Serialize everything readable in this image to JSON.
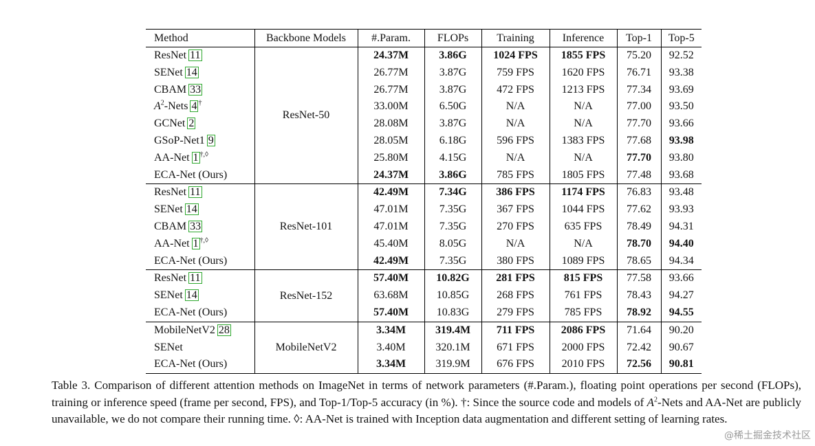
{
  "table": {
    "headers": [
      "Method",
      "Backbone Models",
      "#.Param.",
      "FLOPs",
      "Training",
      "Inference",
      "Top-1",
      "Top-5"
    ],
    "groups": [
      {
        "backbone": "ResNet-50",
        "rows": [
          {
            "method": "ResNet",
            "ref": "11",
            "marks": "",
            "param": "24.37M",
            "flops": "3.86G",
            "train": "1024 FPS",
            "infer": "1855 FPS",
            "top1": "75.20",
            "top5": "92.52"
          },
          {
            "method": "SENet",
            "ref": "14",
            "marks": "",
            "param": "26.77M",
            "flops": "3.87G",
            "train": "759 FPS",
            "infer": "1620 FPS",
            "top1": "76.71",
            "top5": "93.38"
          },
          {
            "method": "CBAM",
            "ref": "33",
            "marks": "",
            "param": "26.77M",
            "flops": "3.87G",
            "train": "472 FPS",
            "infer": "1213 FPS",
            "top1": "77.34",
            "top5": "93.69"
          },
          {
            "method": "-Nets",
            "ref": "4",
            "marks": "†",
            "param": "33.00M",
            "flops": "6.50G",
            "train": "N/A",
            "infer": "N/A",
            "top1": "77.00",
            "top5": "93.50"
          },
          {
            "method": "GCNet",
            "ref": "2",
            "marks": "",
            "param": "28.08M",
            "flops": "3.87G",
            "train": "N/A",
            "infer": "N/A",
            "top1": "77.70",
            "top5": "93.66"
          },
          {
            "method": "GSoP-Net1",
            "ref": "9",
            "marks": "",
            "param": "28.05M",
            "flops": "6.18G",
            "train": "596 FPS",
            "infer": "1383 FPS",
            "top1": "77.68",
            "top5": "93.98"
          },
          {
            "method": "AA-Net",
            "ref": "1",
            "marks": "†,◊",
            "param": "25.80M",
            "flops": "4.15G",
            "train": "N/A",
            "infer": "N/A",
            "top1": "77.70",
            "top5": "93.80"
          },
          {
            "method": "ECA-Net (Ours)",
            "ref": "",
            "marks": "",
            "param": "24.37M",
            "flops": "3.86G",
            "train": "785 FPS",
            "infer": "1805 FPS",
            "top1": "77.48",
            "top5": "93.68"
          }
        ]
      },
      {
        "backbone": "ResNet-101",
        "rows": [
          {
            "method": "ResNet",
            "ref": "11",
            "marks": "",
            "param": "42.49M",
            "flops": "7.34G",
            "train": "386 FPS",
            "infer": "1174 FPS",
            "top1": "76.83",
            "top5": "93.48"
          },
          {
            "method": "SENet",
            "ref": "14",
            "marks": "",
            "param": "47.01M",
            "flops": "7.35G",
            "train": "367 FPS",
            "infer": "1044 FPS",
            "top1": "77.62",
            "top5": "93.93"
          },
          {
            "method": "CBAM",
            "ref": "33",
            "marks": "",
            "param": "47.01M",
            "flops": "7.35G",
            "train": "270 FPS",
            "infer": "635 FPS",
            "top1": "78.49",
            "top5": "94.31"
          },
          {
            "method": "AA-Net",
            "ref": "1",
            "marks": "†,◊",
            "param": "45.40M",
            "flops": "8.05G",
            "train": "N/A",
            "infer": "N/A",
            "top1": "78.70",
            "top5": "94.40"
          },
          {
            "method": "ECA-Net (Ours)",
            "ref": "",
            "marks": "",
            "param": "42.49M",
            "flops": "7.35G",
            "train": "380 FPS",
            "infer": "1089 FPS",
            "top1": "78.65",
            "top5": "94.34"
          }
        ]
      },
      {
        "backbone": "ResNet-152",
        "rows": [
          {
            "method": "ResNet",
            "ref": "11",
            "marks": "",
            "param": "57.40M",
            "flops": "10.82G",
            "train": "281 FPS",
            "infer": "815 FPS",
            "top1": "77.58",
            "top5": "93.66"
          },
          {
            "method": "SENet",
            "ref": "14",
            "marks": "",
            "param": "63.68M",
            "flops": "10.85G",
            "train": "268 FPS",
            "infer": "761 FPS",
            "top1": "78.43",
            "top5": "94.27"
          },
          {
            "method": "ECA-Net (Ours)",
            "ref": "",
            "marks": "",
            "param": "57.40M",
            "flops": "10.83G",
            "train": "279 FPS",
            "infer": "785 FPS",
            "top1": "78.92",
            "top5": "94.55"
          }
        ]
      },
      {
        "backbone": "MobileNetV2",
        "rows": [
          {
            "method": "MobileNetV2",
            "ref": "28",
            "marks": "",
            "param": "3.34M",
            "flops": "319.4M",
            "train": "711 FPS",
            "infer": "2086 FPS",
            "top1": "71.64",
            "top5": "90.20"
          },
          {
            "method": "SENet",
            "ref": "",
            "marks": "",
            "param": "3.40M",
            "flops": "320.1M",
            "train": "671 FPS",
            "infer": "2000 FPS",
            "top1": "72.42",
            "top5": "90.67"
          },
          {
            "method": "ECA-Net (Ours)",
            "ref": "",
            "marks": "",
            "param": "3.34M",
            "flops": "319.9M",
            "train": "676 FPS",
            "infer": "2010 FPS",
            "top1": "72.56",
            "top5": "90.81"
          }
        ]
      }
    ]
  },
  "math": {
    "a_symbol": "A",
    "a_exponent": "2"
  },
  "caption": {
    "part1": "Table 3. Comparison of different attention methods on ImageNet in terms of network parameters (#.Param.), floating point operations per second (FLOPs), training or inference speed (frame per second, FPS), and Top-1/Top-5 accuracy (in %). †: Since the source code and models of ",
    "part2": "-Nets and AA-Net are publicly unavailable, we do not compare their running time. ◊: AA-Net is trained with Inception data augmentation and different setting of learning rates."
  },
  "watermark": "@稀土掘金技术社区"
}
